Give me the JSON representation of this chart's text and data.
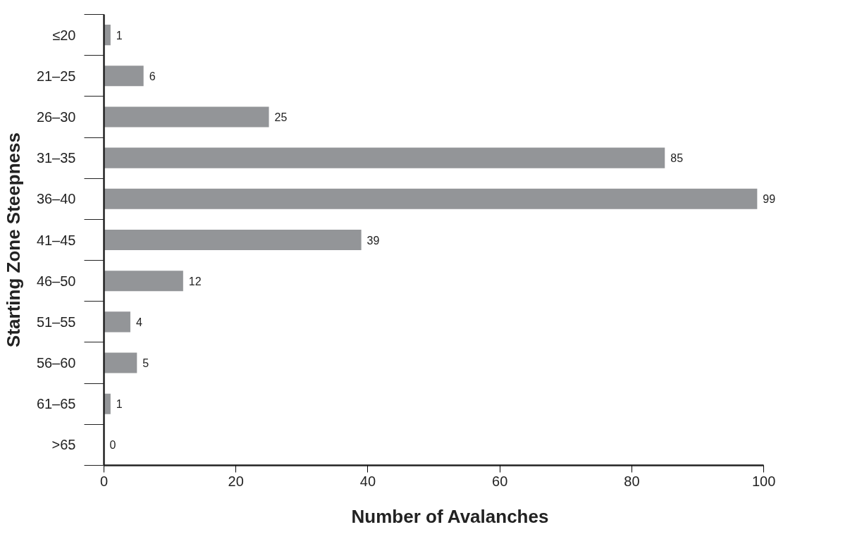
{
  "chart_data": {
    "type": "bar",
    "orientation": "horizontal",
    "xlabel": "Number of Avalanches",
    "ylabel": "Starting Zone Steepness",
    "categories": [
      "≤20",
      "21–25",
      "26–30",
      "31–35",
      "36–40",
      "41–45",
      "46–50",
      "51–55",
      "56–60",
      "61–65",
      ">65"
    ],
    "values": [
      1,
      6,
      25,
      85,
      99,
      39,
      12,
      4,
      5,
      1,
      0
    ],
    "color": "#939598",
    "xlim": [
      0,
      100
    ],
    "xticks": [
      0,
      20,
      40,
      60,
      80,
      100
    ],
    "data_labels": true
  }
}
